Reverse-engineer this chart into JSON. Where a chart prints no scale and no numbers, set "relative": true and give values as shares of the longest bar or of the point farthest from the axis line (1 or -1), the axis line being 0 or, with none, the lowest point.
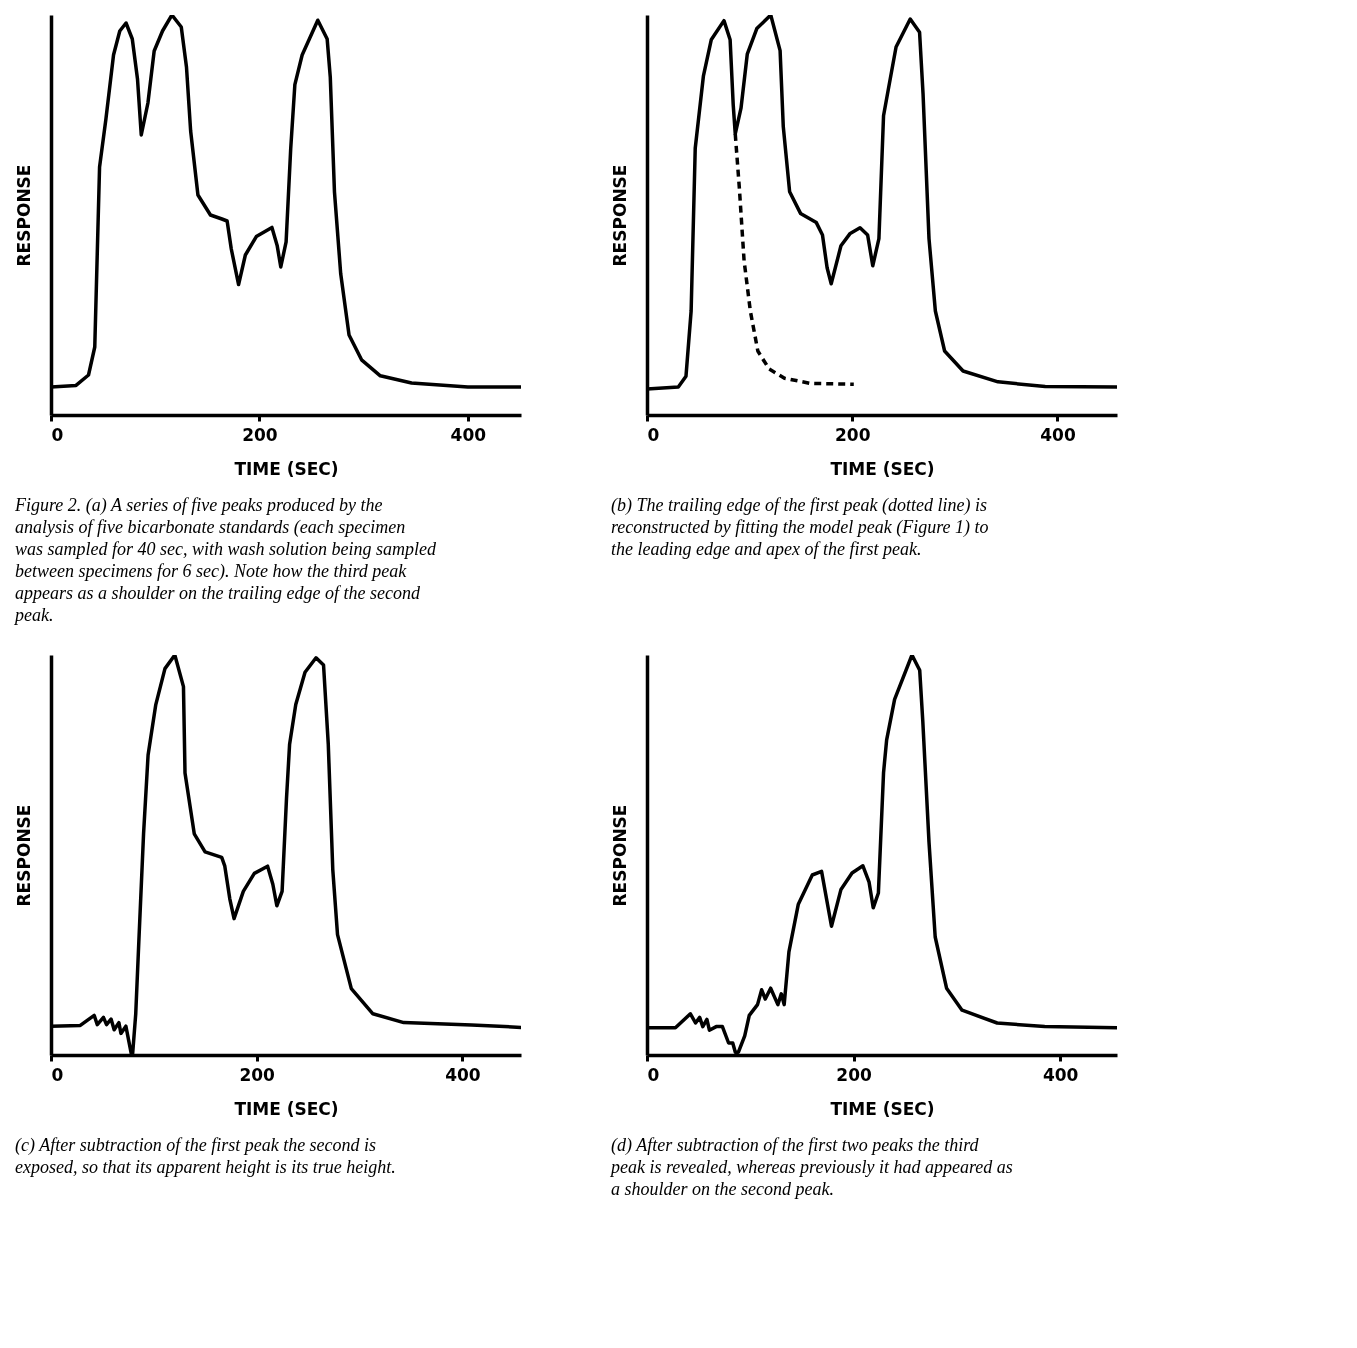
{
  "chart_data": [
    {
      "type": "line",
      "relative": true,
      "xlabel": "TIME (SEC)",
      "ylabel": "RESPONSE",
      "xlim": [
        0,
        451
      ],
      "xticks": [
        0,
        200,
        400
      ],
      "line_style": "solid",
      "annotations": [
        "Figure 2. (a) A series of five peaks produced by the analysis of five bicarbonate standards (each specimen was sampled for 40 sec, with wash solution being sampled between specimens for 6 sec). Note how the third peak appears as a shoulder on the trailing edge of the second peak."
      ],
      "series": [
        {
          "color": "#000000",
          "x": [
            0,
            24,
            36,
            42,
            46.6,
            52.7,
            60,
            66,
            72,
            78,
            83,
            86.6,
            93,
            99,
            107,
            116,
            125,
            130,
            134,
            141,
            153,
            164,
            169,
            173,
            180,
            186.5,
            197,
            212,
            217,
            220.5,
            225.6,
            230,
            234,
            241,
            256,
            265,
            268,
            272,
            278,
            286,
            298,
            316,
            346,
            400,
            451
          ],
          "values": [
            0.07,
            0.074,
            0.1,
            0.17,
            0.62,
            0.74,
            0.9,
            0.96,
            0.98,
            0.94,
            0.84,
            0.7,
            0.78,
            0.91,
            0.96,
            1,
            0.97,
            0.87,
            0.71,
            0.55,
            0.5,
            0.49,
            0.485,
            0.415,
            0.326,
            0.4,
            0.446,
            0.469,
            0.424,
            0.37,
            0.433,
            0.665,
            0.826,
            0.9,
            0.987,
            0.94,
            0.844,
            0.558,
            0.353,
            0.2,
            0.138,
            0.098,
            0.08,
            0.07,
            0.07
          ]
        }
      ]
    },
    {
      "type": "line",
      "relative": true,
      "xlabel": "TIME (SEC)",
      "ylabel": "RESPONSE",
      "xlim": [
        0,
        458
      ],
      "xticks": [
        0,
        200,
        400
      ],
      "annotations": [
        "(b) The trailing edge of the first peak (dotted line) is reconstructed by fitting the model peak (Figure 1) to the leading edge and apex of the first peak."
      ],
      "series": [
        {
          "color": "#000000",
          "line_style": "solid",
          "x": [
            0,
            30.5,
            38,
            43,
            47,
            55,
            62.6,
            75,
            81,
            84,
            86,
            91.6,
            97.7,
            107,
            120.6,
            129.7,
            132.8,
            139,
            149.6,
            165,
            171,
            175.5,
            179.5,
            189,
            198,
            207.6,
            215,
            220,
            226,
            230.5,
            235,
            242.7,
            256.5,
            265.6,
            269,
            274.8,
            281,
            290,
            308,
            342,
            388,
            458
          ],
          "values": [
            0.065,
            0.07,
            0.097,
            0.26,
            0.667,
            0.848,
            0.938,
            0.986,
            0.938,
            0.776,
            0.703,
            0.767,
            0.902,
            0.966,
            1,
            0.911,
            0.721,
            0.558,
            0.504,
            0.481,
            0.45,
            0.368,
            0.328,
            0.423,
            0.454,
            0.468,
            0.45,
            0.373,
            0.441,
            0.748,
            0.812,
            0.92,
            0.99,
            0.957,
            0.803,
            0.441,
            0.26,
            0.16,
            0.11,
            0.083,
            0.071,
            0.07
          ]
        },
        {
          "color": "#000000",
          "line_style": "dashed",
          "x": [
            86,
            90,
            94.6,
            100.7,
            108,
            119,
            134,
            159,
            201.5
          ],
          "values": [
            0.703,
            0.567,
            0.386,
            0.26,
            0.16,
            0.115,
            0.092,
            0.079,
            0.077
          ]
        }
      ]
    },
    {
      "type": "line",
      "relative": true,
      "xlabel": "TIME (SEC)",
      "ylabel": "RESPONSE",
      "xlim": [
        0,
        457
      ],
      "xticks": [
        0,
        200,
        400
      ],
      "line_style": "solid",
      "annotations": [
        "(c) After subtraction of the first peak the second is exposed, so that its apparent height is its true height."
      ],
      "series": [
        {
          "color": "#000000",
          "x": [
            0,
            28.5,
            42,
            45,
            51,
            54,
            58.4,
            61.4,
            66,
            68,
            72.8,
            78,
            79.4,
            82.4,
            85.4,
            90,
            94.4,
            101.9,
            110.8,
            120.4,
            128.8,
            130.3,
            139.3,
            149.8,
            166,
            169,
            173.8,
            178,
            187,
            197.7,
            210.6,
            215.7,
            219.6,
            224.7,
            229,
            232,
            238,
            247,
            257.7,
            265,
            269.6,
            274,
            278.6,
            292,
            313,
            343,
            409,
            457
          ],
          "values": [
            0.072,
            0.074,
            0.099,
            0.076,
            0.094,
            0.076,
            0.09,
            0.063,
            0.081,
            0.054,
            0.072,
            0.004,
            0.004,
            0.103,
            0.283,
            0.553,
            0.75,
            0.876,
            0.966,
            1,
            0.921,
            0.705,
            0.553,
            0.508,
            0.494,
            0.472,
            0.391,
            0.341,
            0.409,
            0.454,
            0.472,
            0.427,
            0.373,
            0.409,
            0.642,
            0.777,
            0.876,
            0.957,
            0.993,
            0.975,
            0.777,
            0.463,
            0.301,
            0.166,
            0.103,
            0.081,
            0.075,
            0.069
          ]
        }
      ]
    },
    {
      "type": "line",
      "relative": true,
      "xlabel": "TIME (SEC)",
      "ylabel": "RESPONSE",
      "xlim": [
        0,
        455
      ],
      "xticks": [
        0,
        200,
        400
      ],
      "line_style": "solid",
      "annotations": [
        "(d) After subtraction of the first two peaks the third peak is revealed, whereas previously it had appeared as a shoulder on the second peak."
      ],
      "series": [
        {
          "color": "#000000",
          "x": [
            0,
            27.5,
            42,
            47,
            51,
            54,
            58,
            60.4,
            67,
            73,
            79,
            83,
            85.5,
            88.5,
            94.6,
            99,
            107,
            111,
            114.5,
            119.7,
            126.7,
            130,
            132.8,
            137.4,
            146.5,
            160,
            169,
            178.6,
            187.8,
            198.5,
            209,
            215,
            219,
            224,
            229,
            232,
            239.7,
            256.5,
            264,
            267,
            273,
            279,
            290,
            305,
            339,
            385,
            455
          ],
          "values": [
            0.068,
            0.068,
            0.103,
            0.08,
            0.094,
            0.071,
            0.089,
            0.062,
            0.071,
            0.071,
            0.03,
            0.03,
            0.007,
            0.007,
            0.048,
            0.099,
            0.126,
            0.163,
            0.14,
            0.167,
            0.126,
            0.153,
            0.126,
            0.258,
            0.377,
            0.45,
            0.459,
            0.322,
            0.414,
            0.455,
            0.473,
            0.432,
            0.368,
            0.405,
            0.706,
            0.788,
            0.889,
            1,
            0.962,
            0.834,
            0.532,
            0.295,
            0.167,
            0.112,
            0.08,
            0.071,
            0.068
          ]
        }
      ]
    }
  ]
}
